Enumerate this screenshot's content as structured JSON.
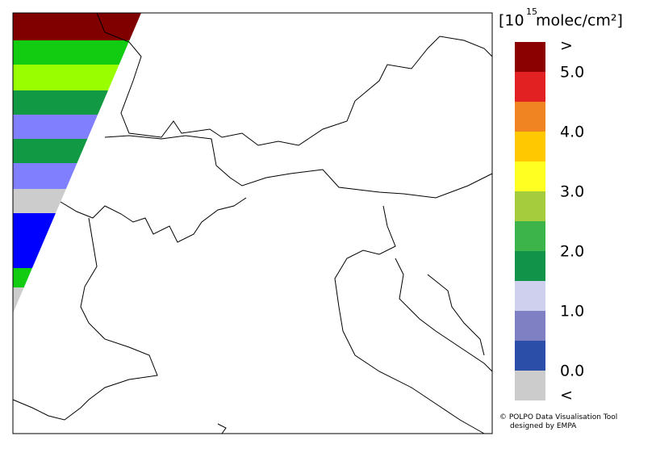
{
  "legend": {
    "unit_prefix": "[10",
    "unit_exponent": "15",
    "unit_suffix": " molec/cm²]",
    "labels": [
      ">",
      "5.0",
      "4.0",
      "3.0",
      "2.0",
      "1.0",
      "0.0",
      "<"
    ],
    "colors": [
      "#8b0000",
      "#e22222",
      "#f08322",
      "#ffc800",
      "#ffff22",
      "#a4cc3c",
      "#3cb44a",
      "#11944a",
      "#cfcfee",
      "#7f7fc4",
      "#2b4fa8",
      "#cccccc"
    ]
  },
  "credit": [
    "© POLPO Data Visualisation Tool",
    "designed by EMPA"
  ]
}
